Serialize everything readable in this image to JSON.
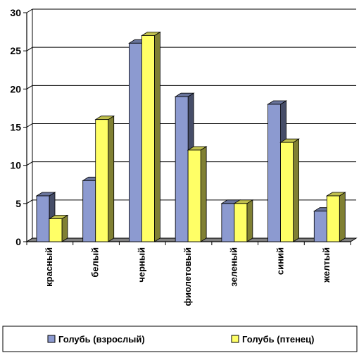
{
  "chart_data": {
    "type": "bar",
    "title": "",
    "xlabel": "",
    "ylabel": "",
    "ylim": [
      0,
      30
    ],
    "yticks": [
      0,
      5,
      10,
      15,
      20,
      25,
      30
    ],
    "grid": true,
    "three_d": true,
    "legend_position": "bottom",
    "categories": [
      "красный",
      "белый",
      "черный",
      "фиолетовый",
      "зеленый",
      "синий",
      "желтый"
    ],
    "series": [
      {
        "name": "Голубь (взрослый)",
        "values": [
          6,
          8,
          26,
          19,
          5,
          18,
          4
        ],
        "color": "#8c9ad0"
      },
      {
        "name": "Голубь (птенец)",
        "values": [
          3,
          16,
          27,
          12,
          5,
          13,
          6
        ],
        "color": "#ffff66"
      }
    ]
  }
}
